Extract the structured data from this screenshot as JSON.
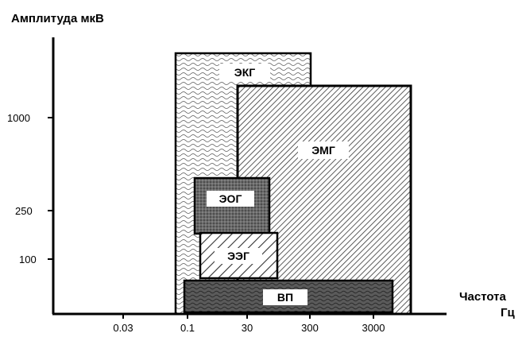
{
  "chart_data": {
    "type": "diagram",
    "ylabel": "Амплитуда мкВ",
    "xlabel_line1": "Частота",
    "xlabel_line2": "Гц",
    "y_ticks": [
      "1000",
      "250",
      "100"
    ],
    "x_ticks": [
      "0.03",
      "0.1",
      "30",
      "300",
      "3000"
    ],
    "regions": [
      {
        "name": "ЭКГ",
        "pattern": "waves"
      },
      {
        "name": "ЭМГ",
        "pattern": "diagonal-dense"
      },
      {
        "name": "ЭОГ",
        "pattern": "dark-stipple"
      },
      {
        "name": "ЭЭГ",
        "pattern": "diagonal-wide"
      },
      {
        "name": "ВП",
        "pattern": "dark-waves"
      }
    ]
  }
}
